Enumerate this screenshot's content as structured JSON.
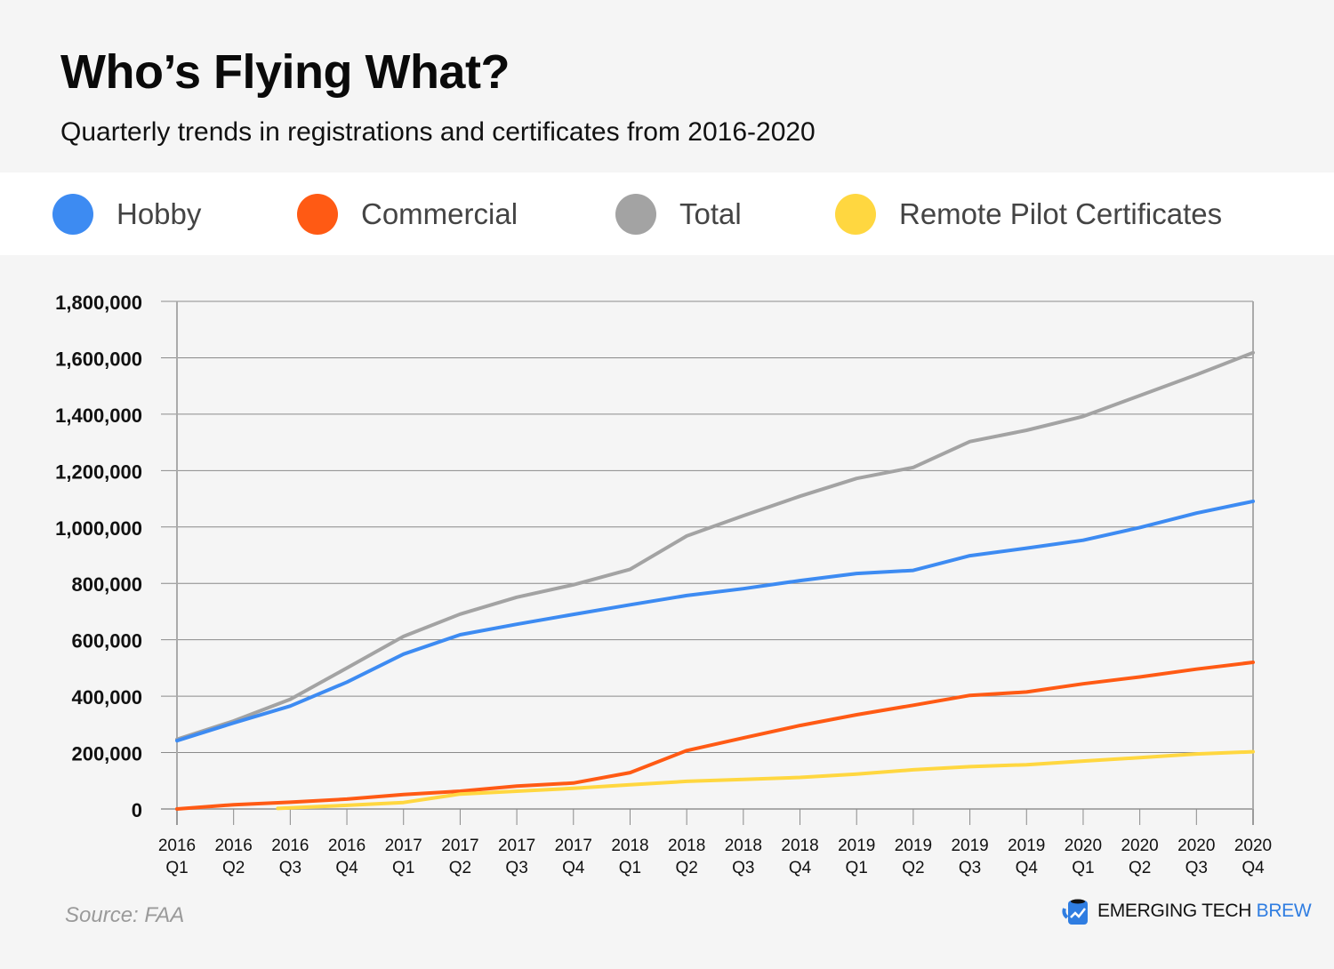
{
  "header": {
    "title": "Who’s Flying What?",
    "subtitle": "Quarterly trends in registrations and certificates from 2016-2020"
  },
  "legend": [
    {
      "label": "Hobby",
      "color": "#3d8bf2"
    },
    {
      "label": "Commercial",
      "color": "#ff5a14"
    },
    {
      "label": "Total",
      "color": "#a3a3a3"
    },
    {
      "label": "Remote Pilot Certificates",
      "color": "#ffd740"
    }
  ],
  "footer": {
    "source": "Source: FAA",
    "brand_main": "EMERGING TECH ",
    "brand_accent": "BREW"
  },
  "chart_data": {
    "type": "line",
    "title": "Who’s Flying What?",
    "subtitle": "Quarterly trends in registrations and certificates from 2016-2020",
    "xlabel": "",
    "ylabel": "",
    "ylim": [
      0,
      1800000
    ],
    "yticks": [
      0,
      200000,
      400000,
      600000,
      800000,
      1000000,
      1200000,
      1400000,
      1600000,
      1800000
    ],
    "ytick_labels": [
      "0",
      "200,000",
      "400,000",
      "600,000",
      "800,000",
      "1,000,000",
      "1,200,000",
      "1,400,000",
      "1,600,000",
      "1,800,000"
    ],
    "grid": true,
    "legend_position": "top",
    "categories": [
      [
        "2016",
        "Q1"
      ],
      [
        "2016",
        "Q2"
      ],
      [
        "2016",
        "Q3"
      ],
      [
        "2016",
        "Q4"
      ],
      [
        "2017",
        "Q1"
      ],
      [
        "2017",
        "Q2"
      ],
      [
        "2017",
        "Q3"
      ],
      [
        "2017",
        "Q4"
      ],
      [
        "2018",
        "Q1"
      ],
      [
        "2018",
        "Q2"
      ],
      [
        "2018",
        "Q3"
      ],
      [
        "2018",
        "Q4"
      ],
      [
        "2019",
        "Q1"
      ],
      [
        "2019",
        "Q2"
      ],
      [
        "2019",
        "Q3"
      ],
      [
        "2019",
        "Q4"
      ],
      [
        "2020",
        "Q1"
      ],
      [
        "2020",
        "Q2"
      ],
      [
        "2020",
        "Q3"
      ],
      [
        "2020",
        "Q4"
      ]
    ],
    "series": [
      {
        "name": "Hobby",
        "color": "#3d8bf2",
        "values": [
          242000,
          305000,
          365000,
          450000,
          549000,
          618000,
          655000,
          690000,
          724000,
          757000,
          781000,
          810000,
          835000,
          846000,
          898000,
          925000,
          953000,
          998000,
          1049000,
          1091000
        ]
      },
      {
        "name": "Commercial",
        "color": "#ff5a14",
        "values": [
          0,
          15000,
          24000,
          35000,
          51000,
          63000,
          81000,
          92000,
          129000,
          207000,
          252000,
          296000,
          334000,
          368000,
          403000,
          415000,
          444000,
          468000,
          496000,
          520000
        ]
      },
      {
        "name": "Total",
        "color": "#a3a3a3",
        "values": [
          247000,
          312000,
          389000,
          500000,
          612000,
          691000,
          751000,
          795000,
          850000,
          968000,
          1040000,
          1109000,
          1172000,
          1211000,
          1303000,
          1343000,
          1392000,
          1466000,
          1540000,
          1618000
        ]
      },
      {
        "name": "Remote Pilot Certificates",
        "color": "#ffd740",
        "values": [
          null,
          null,
          2000,
          13000,
          23000,
          53000,
          63000,
          73000,
          86000,
          98000,
          105000,
          112000,
          124000,
          139000,
          150000,
          157000,
          170000,
          182000,
          195000,
          203000
        ]
      }
    ]
  }
}
